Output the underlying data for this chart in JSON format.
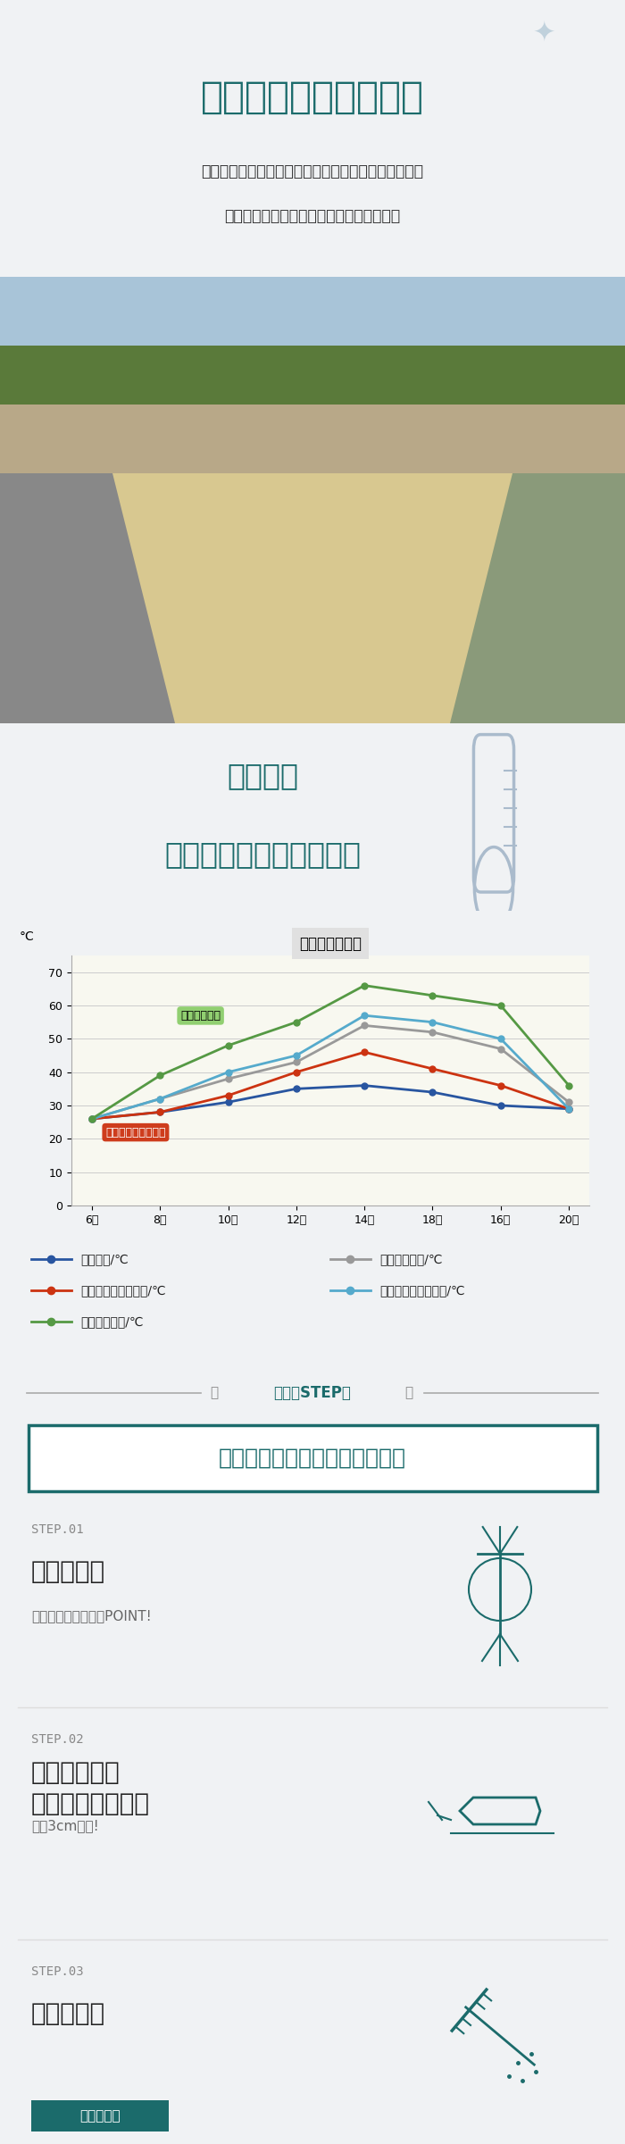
{
  "title1": "自然で美しい仕上がり",
  "subtitle1_line1": "化粧石を敷かなくても、土自体が白っぽく明るいので",
  "subtitle1_line2": "仕上がりがきれいで景観を阻害しません。",
  "title2_line1": "夏場でも",
  "title2_line2": "表面温度が上がりにくい",
  "chart_title": "表面温度グラフ",
  "x_labels": [
    "6時",
    "8時",
    "10時",
    "12時",
    "14時",
    "18時",
    "16時",
    "20時"
  ],
  "ylabel": "°C",
  "ylim": [
    0,
    75
  ],
  "yticks": [
    0,
    10,
    20,
    30,
    40,
    50,
    60,
    70
  ],
  "series_order": [
    "測定気温",
    "防草マサスペシャル",
    "コンクリート",
    "インターロッキング",
    "アスファルト"
  ],
  "series": {
    "測定気温": {
      "color": "#2855a0",
      "values": [
        26,
        28,
        31,
        35,
        36,
        34,
        30,
        29
      ]
    },
    "防草マサスペシャル": {
      "color": "#cc3311",
      "values": [
        26,
        28,
        33,
        40,
        46,
        41,
        36,
        29
      ]
    },
    "コンクリート": {
      "color": "#999999",
      "values": [
        26,
        32,
        38,
        43,
        54,
        52,
        47,
        31
      ]
    },
    "インターロッキング": {
      "color": "#55aacc",
      "values": [
        26,
        32,
        40,
        45,
        57,
        55,
        50,
        29
      ]
    },
    "アスファルト": {
      "color": "#559944",
      "values": [
        26,
        39,
        48,
        55,
        66,
        63,
        60,
        36
      ]
    }
  },
  "legend_items_col1": [
    "測定気温/℃",
    "防草マサスペシャル/℃",
    "アスファルト/℃"
  ],
  "legend_items_col2": [
    "コンクリート/℃",
    "インターロッキング/℃"
  ],
  "legend_colors_col1": [
    "#2855a0",
    "#cc3311",
    "#559944"
  ],
  "legend_colors_col2": [
    "#999999",
    "#55aacc"
  ],
  "asphalt_label": "アスファルト",
  "masaspe_label": "防草マサスペシャル",
  "garden_label": "お庭の雑草対策にもおすすめ！",
  "step_header": "簡単３STEP！",
  "steps": [
    {
      "num": "STEP.01",
      "title": "雑草を除去",
      "desc": "根っこから抜くのがPOINT!"
    },
    {
      "num": "STEP.02",
      "title": "砂を敷き詰め\n地面を踏み固める",
      "desc": "厚み3cm以上!"
    },
    {
      "num": "STEP.03",
      "title": "表面を均す",
      "badge": "施工完了！"
    }
  ],
  "bg_light": "#f0f2f4",
  "bg_white": "#ffffff",
  "teal_dark": "#1b6b6b",
  "teal_mid": "#2a8888",
  "gray_text": "#888888",
  "dark_text": "#222222",
  "photo1_color": "#6b8e5a",
  "photo2_color": "#c8b87a",
  "chart_header_bg": "#e0e0e0",
  "chart_area_bg": "#f8f8f0"
}
